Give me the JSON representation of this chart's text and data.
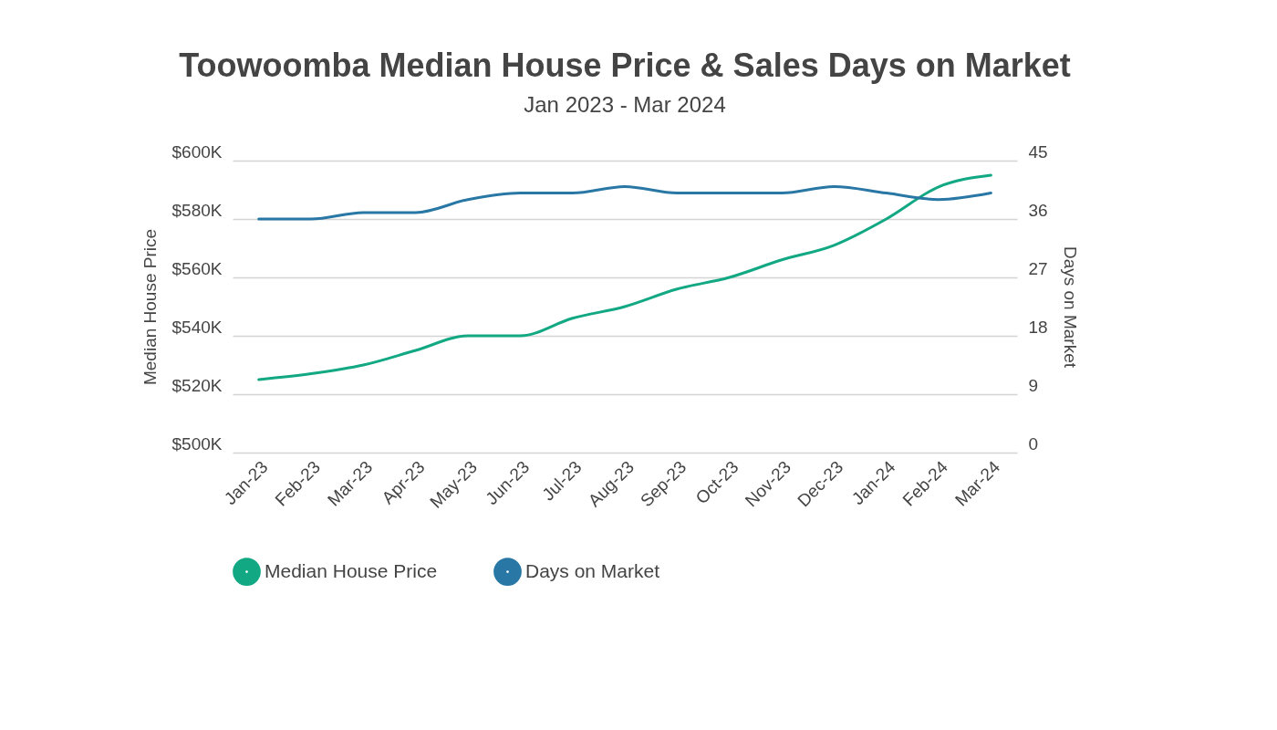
{
  "chart_data": {
    "type": "line",
    "title": "Toowoomba Median House Price & Sales Days on Market",
    "subtitle": "Jan 2023 - Mar 2024",
    "ylabel": "Median House Price",
    "y2label": "Days on Market",
    "categories": [
      "Jan-23",
      "Feb-23",
      "Mar-23",
      "Apr-23",
      "May-23",
      "Jun-23",
      "Jul-23",
      "Aug-23",
      "Sep-23",
      "Oct-23",
      "Nov-23",
      "Dec-23",
      "Jan-24",
      "Feb-24",
      "Mar-24"
    ],
    "series": [
      {
        "name": "Median House Price",
        "color": "#12a883",
        "values": [
          525000,
          527000,
          530000,
          535000,
          540000,
          540000,
          546000,
          550000,
          556000,
          560000,
          566000,
          571000,
          580000,
          591000,
          595000
        ]
      },
      {
        "name": "Days on Market",
        "color": "#2877a4",
        "axis": "y2",
        "values": [
          36,
          36,
          37,
          37,
          39,
          40,
          40,
          41,
          40,
          40,
          40,
          41,
          40,
          39,
          40
        ]
      }
    ],
    "ylim": [
      500000,
      600000
    ],
    "yticks": [
      {
        "value": 500000,
        "label": "$500K"
      },
      {
        "value": 520000,
        "label": "$520K"
      },
      {
        "value": 540000,
        "label": "$540K"
      },
      {
        "value": 560000,
        "label": "$560K"
      },
      {
        "value": 580000,
        "label": "$580K"
      },
      {
        "value": 600000,
        "label": "$600K"
      }
    ],
    "y2lim": [
      0,
      45
    ],
    "y2ticks": [
      0,
      9,
      18,
      27,
      36,
      45
    ],
    "grid": "y",
    "legend": "bottom",
    "marker": "none",
    "line_style": "solid"
  }
}
